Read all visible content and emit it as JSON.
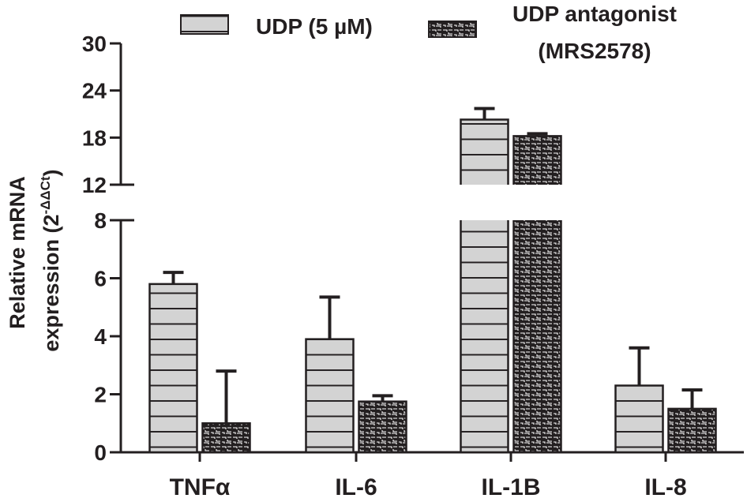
{
  "chart_data": {
    "type": "bar",
    "ylabel_line1": "Relative mRNA",
    "ylabel_line2_prefix": "expression (2",
    "ylabel_superscript": "-ΔΔCt",
    "ylabel_line2_suffix": ")",
    "categories": [
      "TNFα",
      "IL-6",
      "IL-1B",
      "IL-8"
    ],
    "axis_break": {
      "lower_segment": [
        0,
        8
      ],
      "upper_segment": [
        12,
        30
      ]
    },
    "yticks_lower": [
      "0",
      "2",
      "4",
      "6",
      "8"
    ],
    "yticks_upper": [
      "12",
      "18",
      "24",
      "30"
    ],
    "series": [
      {
        "name": "UDP (5 µM)",
        "values": [
          5.8,
          3.9,
          20.3,
          2.3
        ],
        "errors": [
          0.4,
          1.45,
          1.4,
          1.3
        ],
        "fill": "#d3d3d3",
        "pattern": "horizontal-lines"
      },
      {
        "name": "UDP antagonist (MRS2578)",
        "name_line1": "UDP antagonist",
        "name_line2": "(MRS2578)",
        "values": [
          1.0,
          1.75,
          18.2,
          1.5
        ],
        "errors": [
          1.8,
          0.2,
          0.3,
          0.65
        ],
        "fill": "#231f20",
        "pattern": "brick-hatch"
      }
    ],
    "colors": {
      "ink": "#231f20"
    }
  }
}
